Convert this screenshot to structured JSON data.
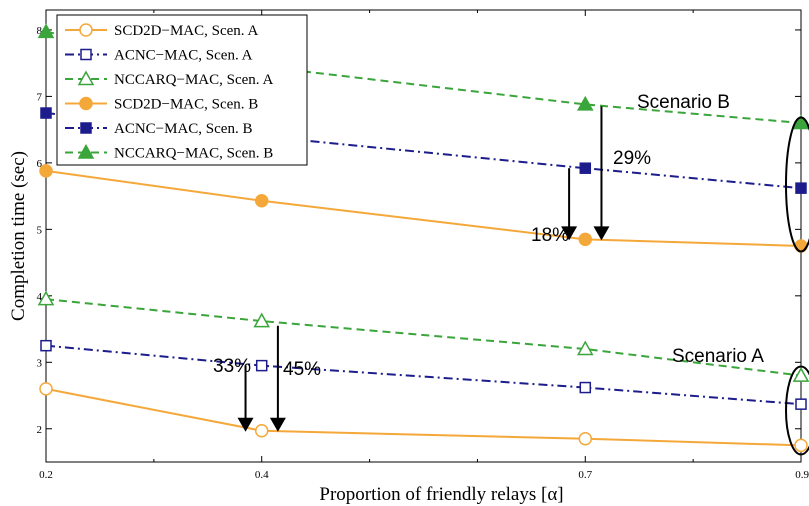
{
  "chart_data": {
    "type": "line",
    "xlabel": "Proportion of friendly relays [α]",
    "ylabel": "Completion time (sec)",
    "xlim": [
      0.2,
      0.9
    ],
    "ylim": [
      1.5,
      8.3
    ],
    "x_ticks": [
      0.2,
      0.4,
      0.7,
      0.9
    ],
    "x_tick_labels": [
      "0.2",
      "0.4",
      "0.7",
      "0.9"
    ],
    "y_ticks": [
      2,
      3,
      4,
      5,
      6,
      7,
      8
    ],
    "y_tick_labels": [
      "2",
      "3",
      "4",
      "5",
      "6",
      "7",
      "8"
    ],
    "grid": false,
    "legend_position": "top-left",
    "x": [
      0.2,
      0.4,
      0.7,
      0.9
    ],
    "series": [
      {
        "name": "SCD2D−MAC, Scen. A",
        "values": [
          2.6,
          1.97,
          1.85,
          1.75
        ],
        "color": "#f5a83a",
        "marker": "circle",
        "filled": false,
        "dash": "solid"
      },
      {
        "name": "ACNC−MAC, Scen. A",
        "values": [
          3.25,
          2.95,
          2.62,
          2.37
        ],
        "color": "#1c1c8c",
        "marker": "square",
        "filled": false,
        "dash": "dashdot"
      },
      {
        "name": "NCCARQ−MAC, Scen. A",
        "values": [
          3.95,
          3.62,
          3.2,
          2.8
        ],
        "color": "#3aa53a",
        "marker": "triangle",
        "filled": false,
        "dash": "dashed"
      },
      {
        "name": "SCD2D−MAC, Scen. B",
        "values": [
          5.88,
          5.43,
          4.85,
          4.75
        ],
        "color": "#f5a83a",
        "marker": "circle",
        "filled": true,
        "dash": "solid"
      },
      {
        "name": "ACNC−MAC, Scen. B",
        "values": [
          6.75,
          6.4,
          5.92,
          5.62
        ],
        "color": "#1c1c8c",
        "marker": "square",
        "filled": true,
        "dash": "dashdot"
      },
      {
        "name": "NCCARQ−MAC, Scen. B",
        "values": [
          7.97,
          7.45,
          6.88,
          6.6
        ],
        "color": "#3aa53a",
        "marker": "triangle",
        "filled": true,
        "dash": "dashed"
      }
    ],
    "annotations": [
      {
        "text": "Scenario B"
      },
      {
        "text": "Scenario A"
      },
      {
        "text": "29%"
      },
      {
        "text": "18%"
      },
      {
        "text": "33%"
      },
      {
        "text": "45%"
      }
    ]
  }
}
